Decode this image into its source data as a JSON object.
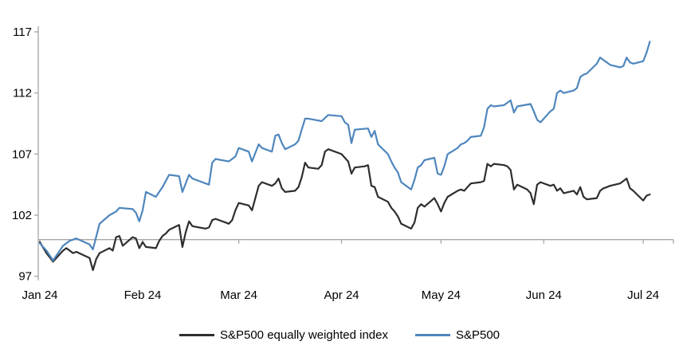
{
  "page": {
    "background": "#ffffff"
  },
  "chart_data": {
    "type": "line",
    "title": "",
    "axis_color": "#a6a6a6",
    "baseline_value": 100,
    "grid": "off",
    "legend": {
      "position": "bottom-center"
    },
    "y_axis": {
      "ticks": [
        117,
        112,
        107,
        102,
        97
      ],
      "tick_labels": [
        "117",
        "112",
        "107",
        "102",
        "97"
      ],
      "range": [
        96.7,
        117.4
      ]
    },
    "x_axis": {
      "ticks": [
        {
          "date": "2024-01-01",
          "label": "Jan 24"
        },
        {
          "date": "2024-02-01",
          "label": "Feb 24"
        },
        {
          "date": "2024-03-01",
          "label": "Mar 24"
        },
        {
          "date": "2024-04-01",
          "label": "Apr 24"
        },
        {
          "date": "2024-05-01",
          "label": "May 24"
        },
        {
          "date": "2024-06-01",
          "label": "Jun 24"
        },
        {
          "date": "2024-07-01",
          "label": "Jul 24"
        }
      ],
      "range_dates": [
        "2024-01-01",
        "2024-07-10"
      ]
    },
    "series": [
      {
        "id": "equal-weight",
        "name": "S&P500 equally weighted index",
        "color": "#2e2e2e",
        "points": [
          [
            "2024-01-01",
            99.8
          ],
          [
            "2024-01-03",
            98.9
          ],
          [
            "2024-01-05",
            98.2
          ],
          [
            "2024-01-08",
            99.1
          ],
          [
            "2024-01-09",
            99.3
          ],
          [
            "2024-01-11",
            98.9
          ],
          [
            "2024-01-12",
            99.0
          ],
          [
            "2024-01-16",
            98.5
          ],
          [
            "2024-01-17",
            97.5
          ],
          [
            "2024-01-18",
            98.4
          ],
          [
            "2024-01-19",
            98.9
          ],
          [
            "2024-01-22",
            99.3
          ],
          [
            "2024-01-23",
            99.1
          ],
          [
            "2024-01-24",
            100.2
          ],
          [
            "2024-01-25",
            100.3
          ],
          [
            "2024-01-26",
            99.5
          ],
          [
            "2024-01-29",
            100.2
          ],
          [
            "2024-01-30",
            100.1
          ],
          [
            "2024-01-31",
            99.3
          ],
          [
            "2024-02-01",
            99.8
          ],
          [
            "2024-02-02",
            99.4
          ],
          [
            "2024-02-05",
            99.3
          ],
          [
            "2024-02-06",
            99.9
          ],
          [
            "2024-02-07",
            100.3
          ],
          [
            "2024-02-08",
            100.5
          ],
          [
            "2024-02-09",
            100.8
          ],
          [
            "2024-02-12",
            101.2
          ],
          [
            "2024-02-13",
            99.4
          ],
          [
            "2024-02-14",
            100.6
          ],
          [
            "2024-02-15",
            101.5
          ],
          [
            "2024-02-16",
            101.1
          ],
          [
            "2024-02-20",
            100.9
          ],
          [
            "2024-02-21",
            101.0
          ],
          [
            "2024-02-22",
            101.6
          ],
          [
            "2024-02-23",
            101.7
          ],
          [
            "2024-02-26",
            101.4
          ],
          [
            "2024-02-27",
            101.3
          ],
          [
            "2024-02-28",
            101.6
          ],
          [
            "2024-02-29",
            102.4
          ],
          [
            "2024-03-01",
            103.0
          ],
          [
            "2024-03-04",
            102.8
          ],
          [
            "2024-03-05",
            102.4
          ],
          [
            "2024-03-06",
            103.4
          ],
          [
            "2024-03-07",
            104.4
          ],
          [
            "2024-03-08",
            104.7
          ],
          [
            "2024-03-11",
            104.4
          ],
          [
            "2024-03-12",
            104.6
          ],
          [
            "2024-03-13",
            105.0
          ],
          [
            "2024-03-14",
            104.2
          ],
          [
            "2024-03-15",
            103.9
          ],
          [
            "2024-03-18",
            104.0
          ],
          [
            "2024-03-19",
            104.3
          ],
          [
            "2024-03-20",
            105.1
          ],
          [
            "2024-03-21",
            106.3
          ],
          [
            "2024-03-22",
            105.9
          ],
          [
            "2024-03-25",
            105.8
          ],
          [
            "2024-03-26",
            106.1
          ],
          [
            "2024-03-27",
            107.2
          ],
          [
            "2024-03-28",
            107.4
          ],
          [
            "2024-04-01",
            107.0
          ],
          [
            "2024-04-02",
            106.7
          ],
          [
            "2024-04-03",
            106.4
          ],
          [
            "2024-04-04",
            105.4
          ],
          [
            "2024-04-05",
            105.9
          ],
          [
            "2024-04-08",
            106.0
          ],
          [
            "2024-04-09",
            106.1
          ],
          [
            "2024-04-10",
            104.4
          ],
          [
            "2024-04-11",
            104.3
          ],
          [
            "2024-04-12",
            103.5
          ],
          [
            "2024-04-15",
            103.1
          ],
          [
            "2024-04-16",
            102.6
          ],
          [
            "2024-04-17",
            102.3
          ],
          [
            "2024-04-18",
            101.9
          ],
          [
            "2024-04-19",
            101.3
          ],
          [
            "2024-04-22",
            100.9
          ],
          [
            "2024-04-23",
            101.4
          ],
          [
            "2024-04-24",
            102.6
          ],
          [
            "2024-04-25",
            102.9
          ],
          [
            "2024-04-26",
            102.7
          ],
          [
            "2024-04-29",
            103.4
          ],
          [
            "2024-04-30",
            102.9
          ],
          [
            "2024-05-01",
            102.3
          ],
          [
            "2024-05-02",
            103.0
          ],
          [
            "2024-05-03",
            103.5
          ],
          [
            "2024-05-06",
            104.0
          ],
          [
            "2024-05-07",
            104.1
          ],
          [
            "2024-05-08",
            104.0
          ],
          [
            "2024-05-09",
            104.3
          ],
          [
            "2024-05-10",
            104.6
          ],
          [
            "2024-05-13",
            104.7
          ],
          [
            "2024-05-14",
            104.8
          ],
          [
            "2024-05-15",
            106.2
          ],
          [
            "2024-05-16",
            106.0
          ],
          [
            "2024-05-17",
            106.2
          ],
          [
            "2024-05-20",
            106.1
          ],
          [
            "2024-05-21",
            106.0
          ],
          [
            "2024-05-22",
            105.7
          ],
          [
            "2024-05-23",
            104.1
          ],
          [
            "2024-05-24",
            104.5
          ],
          [
            "2024-05-27",
            104.1
          ],
          [
            "2024-05-28",
            103.8
          ],
          [
            "2024-05-29",
            102.9
          ],
          [
            "2024-05-30",
            104.5
          ],
          [
            "2024-05-31",
            104.7
          ],
          [
            "2024-06-03",
            104.4
          ],
          [
            "2024-06-04",
            104.5
          ],
          [
            "2024-06-05",
            104.0
          ],
          [
            "2024-06-06",
            104.2
          ],
          [
            "2024-06-07",
            103.8
          ],
          [
            "2024-06-10",
            104.0
          ],
          [
            "2024-06-11",
            103.7
          ],
          [
            "2024-06-12",
            104.3
          ],
          [
            "2024-06-13",
            103.5
          ],
          [
            "2024-06-14",
            103.3
          ],
          [
            "2024-06-17",
            103.4
          ],
          [
            "2024-06-18",
            104.0
          ],
          [
            "2024-06-19",
            104.2
          ],
          [
            "2024-06-20",
            104.3
          ],
          [
            "2024-06-21",
            104.4
          ],
          [
            "2024-06-24",
            104.6
          ],
          [
            "2024-06-25",
            104.8
          ],
          [
            "2024-06-26",
            105.0
          ],
          [
            "2024-06-27",
            104.2
          ],
          [
            "2024-06-28",
            104.0
          ],
          [
            "2024-07-01",
            103.2
          ],
          [
            "2024-07-02",
            103.6
          ],
          [
            "2024-07-03",
            103.7
          ]
        ]
      },
      {
        "id": "sp500",
        "name": "S&P500",
        "color": "#4F86BD",
        "points": [
          [
            "2024-01-01",
            99.7
          ],
          [
            "2024-01-03",
            99.1
          ],
          [
            "2024-01-05",
            98.3
          ],
          [
            "2024-01-08",
            99.5
          ],
          [
            "2024-01-10",
            99.9
          ],
          [
            "2024-01-12",
            100.1
          ],
          [
            "2024-01-16",
            99.6
          ],
          [
            "2024-01-17",
            99.2
          ],
          [
            "2024-01-19",
            101.3
          ],
          [
            "2024-01-22",
            102.0
          ],
          [
            "2024-01-24",
            102.3
          ],
          [
            "2024-01-25",
            102.6
          ],
          [
            "2024-01-29",
            102.5
          ],
          [
            "2024-01-30",
            102.2
          ],
          [
            "2024-01-31",
            101.5
          ],
          [
            "2024-02-01",
            102.4
          ],
          [
            "2024-02-02",
            103.9
          ],
          [
            "2024-02-05",
            103.5
          ],
          [
            "2024-02-07",
            104.3
          ],
          [
            "2024-02-09",
            105.3
          ],
          [
            "2024-02-12",
            105.2
          ],
          [
            "2024-02-13",
            103.9
          ],
          [
            "2024-02-15",
            105.3
          ],
          [
            "2024-02-16",
            105.0
          ],
          [
            "2024-02-20",
            104.6
          ],
          [
            "2024-02-21",
            104.5
          ],
          [
            "2024-02-22",
            106.3
          ],
          [
            "2024-02-23",
            106.6
          ],
          [
            "2024-02-27",
            106.4
          ],
          [
            "2024-02-29",
            106.8
          ],
          [
            "2024-03-01",
            107.5
          ],
          [
            "2024-03-04",
            107.2
          ],
          [
            "2024-03-05",
            106.4
          ],
          [
            "2024-03-07",
            107.8
          ],
          [
            "2024-03-08",
            107.5
          ],
          [
            "2024-03-11",
            107.2
          ],
          [
            "2024-03-12",
            108.5
          ],
          [
            "2024-03-13",
            108.6
          ],
          [
            "2024-03-14",
            107.9
          ],
          [
            "2024-03-15",
            107.4
          ],
          [
            "2024-03-18",
            107.8
          ],
          [
            "2024-03-19",
            108.1
          ],
          [
            "2024-03-20",
            109.0
          ],
          [
            "2024-03-21",
            109.9
          ],
          [
            "2024-03-22",
            109.9
          ],
          [
            "2024-03-26",
            109.7
          ],
          [
            "2024-03-28",
            110.2
          ],
          [
            "2024-04-01",
            110.1
          ],
          [
            "2024-04-02",
            109.6
          ],
          [
            "2024-04-03",
            109.4
          ],
          [
            "2024-04-04",
            107.9
          ],
          [
            "2024-04-05",
            109.0
          ],
          [
            "2024-04-09",
            109.1
          ],
          [
            "2024-04-10",
            108.4
          ],
          [
            "2024-04-11",
            108.9
          ],
          [
            "2024-04-12",
            107.8
          ],
          [
            "2024-04-15",
            107.0
          ],
          [
            "2024-04-16",
            106.4
          ],
          [
            "2024-04-17",
            105.9
          ],
          [
            "2024-04-18",
            105.5
          ],
          [
            "2024-04-19",
            104.7
          ],
          [
            "2024-04-22",
            104.1
          ],
          [
            "2024-04-23",
            104.9
          ],
          [
            "2024-04-24",
            105.9
          ],
          [
            "2024-04-25",
            106.1
          ],
          [
            "2024-04-26",
            106.5
          ],
          [
            "2024-04-29",
            106.7
          ],
          [
            "2024-04-30",
            105.4
          ],
          [
            "2024-05-01",
            105.3
          ],
          [
            "2024-05-02",
            106.0
          ],
          [
            "2024-05-03",
            107.0
          ],
          [
            "2024-05-06",
            107.5
          ],
          [
            "2024-05-07",
            107.8
          ],
          [
            "2024-05-08",
            107.9
          ],
          [
            "2024-05-09",
            108.1
          ],
          [
            "2024-05-10",
            108.4
          ],
          [
            "2024-05-13",
            108.5
          ],
          [
            "2024-05-14",
            109.2
          ],
          [
            "2024-05-15",
            110.7
          ],
          [
            "2024-05-16",
            111.0
          ],
          [
            "2024-05-17",
            110.9
          ],
          [
            "2024-05-20",
            111.0
          ],
          [
            "2024-05-21",
            111.2
          ],
          [
            "2024-05-22",
            111.4
          ],
          [
            "2024-05-23",
            110.4
          ],
          [
            "2024-05-24",
            110.9
          ],
          [
            "2024-05-28",
            111.1
          ],
          [
            "2024-05-29",
            110.5
          ],
          [
            "2024-05-30",
            109.8
          ],
          [
            "2024-05-31",
            109.6
          ],
          [
            "2024-06-03",
            110.5
          ],
          [
            "2024-06-04",
            110.7
          ],
          [
            "2024-06-05",
            112.0
          ],
          [
            "2024-06-06",
            112.2
          ],
          [
            "2024-06-07",
            112.0
          ],
          [
            "2024-06-10",
            112.2
          ],
          [
            "2024-06-11",
            112.4
          ],
          [
            "2024-06-12",
            113.3
          ],
          [
            "2024-06-13",
            113.5
          ],
          [
            "2024-06-14",
            113.6
          ],
          [
            "2024-06-17",
            114.4
          ],
          [
            "2024-06-18",
            114.9
          ],
          [
            "2024-06-19",
            114.7
          ],
          [
            "2024-06-20",
            114.5
          ],
          [
            "2024-06-21",
            114.3
          ],
          [
            "2024-06-24",
            114.1
          ],
          [
            "2024-06-25",
            114.2
          ],
          [
            "2024-06-26",
            114.9
          ],
          [
            "2024-06-27",
            114.5
          ],
          [
            "2024-06-28",
            114.4
          ],
          [
            "2024-07-01",
            114.6
          ],
          [
            "2024-07-02",
            115.3
          ],
          [
            "2024-07-03",
            116.2
          ]
        ]
      }
    ]
  }
}
